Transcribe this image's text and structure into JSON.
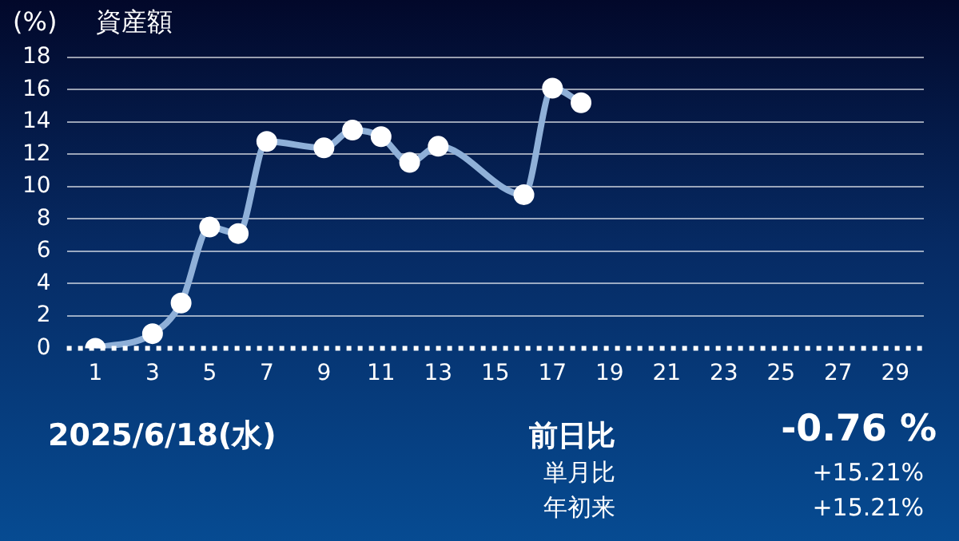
{
  "chart_data": {
    "type": "line",
    "title": "資産額",
    "ylabel": "(%)",
    "x": [
      1,
      3,
      4,
      5,
      6,
      7,
      9,
      10,
      11,
      12,
      13,
      16,
      17,
      18
    ],
    "series": [
      {
        "color": "#8fb0d8",
        "values": [
          0,
          0.9,
          2.8,
          7.5,
          7.1,
          12.8,
          12.4,
          13.5,
          13.1,
          11.5,
          12.5,
          9.5,
          16.1,
          15.2
        ]
      }
    ],
    "xlim": [
      0,
      30
    ],
    "xticks": [
      1,
      3,
      5,
      7,
      9,
      11,
      13,
      15,
      17,
      19,
      21,
      23,
      25,
      27,
      29
    ],
    "ylim": [
      0,
      18
    ],
    "yticks": [
      0,
      2,
      4,
      6,
      8,
      10,
      12,
      14,
      16,
      18
    ],
    "grid": "y",
    "marker": "circle",
    "line_style": "solid",
    "legend": false,
    "ref_lines": [
      {
        "axis": "y",
        "value": 0,
        "color": "#ffffff",
        "line_style": "dotted"
      }
    ],
    "annotations": [
      "2025/6/18(水)",
      "前日比",
      "-0.76 %",
      "単月比",
      "+15.21%",
      "年初来",
      "+15.21%"
    ]
  }
}
